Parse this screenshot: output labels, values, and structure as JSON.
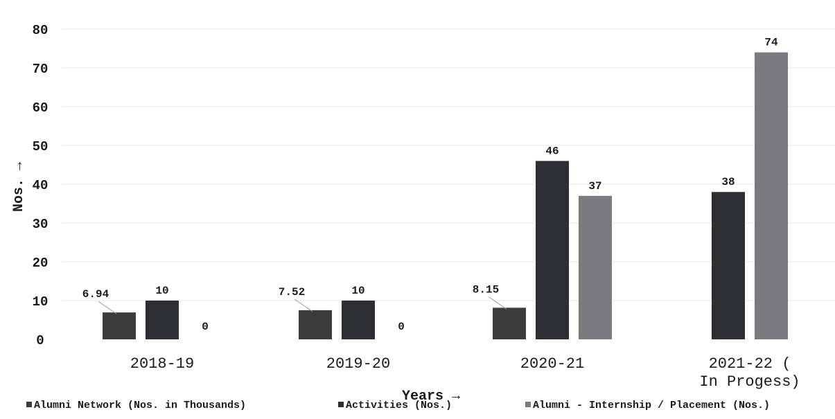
{
  "chart_data": {
    "type": "bar",
    "title": "",
    "categories": [
      "2018-19",
      "2019-20",
      "2020-21",
      "2021-22 (In Progess)"
    ],
    "series": [
      {
        "name": "Alumni Network (Nos. in Thousands)",
        "values": [
          6.94,
          7.52,
          8.15,
          null
        ],
        "color": "#3b3b3b"
      },
      {
        "name": "Activities (Nos.)",
        "values": [
          10,
          10,
          46,
          38
        ],
        "color": "#2e2e35"
      },
      {
        "name": "Alumni - Internship / Placement (Nos.)",
        "values": [
          0,
          0,
          37,
          74
        ],
        "color": "#7a7a80"
      }
    ],
    "data_labels": [
      [
        "6.94",
        "7.52",
        "8.15",
        ""
      ],
      [
        "10",
        "10",
        "46",
        "38"
      ],
      [
        "0",
        "0",
        "37",
        "74"
      ]
    ],
    "ylim": [
      0,
      80
    ],
    "yticks": [
      0,
      10,
      20,
      30,
      40,
      50,
      60,
      70,
      80
    ],
    "xlabel": "Years →",
    "ylabel": "Nos. →",
    "legend_position": "bottom",
    "grid": true
  }
}
